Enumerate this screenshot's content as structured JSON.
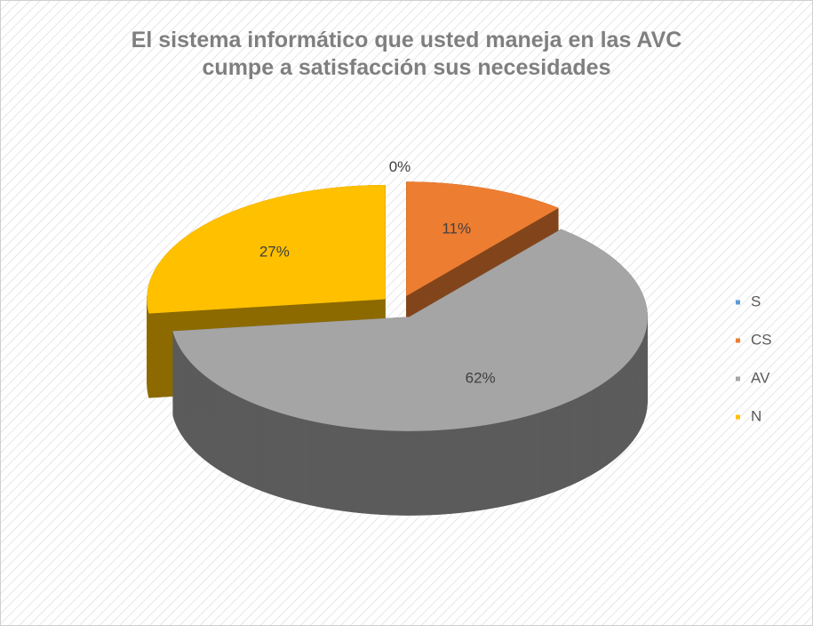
{
  "chart_data": {
    "type": "pie3d",
    "title": "El sistema informático que usted maneja en las AVC cumpe a satisfacción sus necesidades",
    "categories": [
      "S",
      "CS",
      "AV",
      "N"
    ],
    "values": [
      0,
      11,
      62,
      27
    ],
    "value_labels": [
      "0%",
      "11%",
      "62%",
      "27%"
    ],
    "colors": [
      "#5b9bd5",
      "#ed7d31",
      "#a5a5a5",
      "#ffc000"
    ],
    "legend": "right"
  }
}
